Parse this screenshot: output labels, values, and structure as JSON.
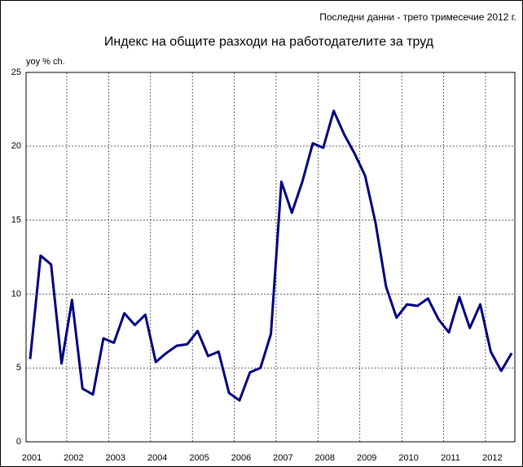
{
  "chart_data": {
    "type": "line",
    "title": "Индекс на общите разходи на работодателите за труд",
    "subtitle": "Последни данни - трето тримесечие 2012 г.",
    "y_label": "yoy % ch.",
    "categories": [
      "2001",
      null,
      null,
      null,
      "2002",
      null,
      null,
      null,
      "2003",
      null,
      null,
      null,
      "2004",
      null,
      null,
      null,
      "2005",
      null,
      null,
      null,
      "2006",
      null,
      null,
      null,
      "2007",
      null,
      null,
      null,
      "2008",
      null,
      null,
      null,
      "2009",
      null,
      null,
      null,
      "2010",
      null,
      null,
      null,
      "2011",
      null,
      null,
      null,
      "2012",
      null,
      null
    ],
    "series": [
      {
        "name": "yoy % ch.",
        "color": "#000080",
        "values": [
          5.6,
          12.6,
          12.0,
          5.3,
          9.6,
          3.6,
          3.2,
          7.0,
          6.7,
          8.7,
          7.9,
          8.6,
          5.4,
          6.0,
          6.5,
          6.6,
          7.5,
          5.8,
          6.1,
          3.3,
          2.8,
          4.7,
          5.0,
          7.3,
          17.6,
          15.5,
          17.6,
          20.2,
          19.9,
          22.4,
          20.8,
          19.5,
          18.0,
          14.8,
          10.5,
          8.4,
          9.3,
          9.2,
          9.7,
          8.3,
          7.4,
          9.8,
          7.7,
          9.3,
          6.1,
          4.8,
          6.0
        ]
      }
    ],
    "ylim": [
      0,
      25
    ],
    "yticks": [
      0,
      5,
      10,
      15,
      20,
      25
    ],
    "grid": true
  }
}
